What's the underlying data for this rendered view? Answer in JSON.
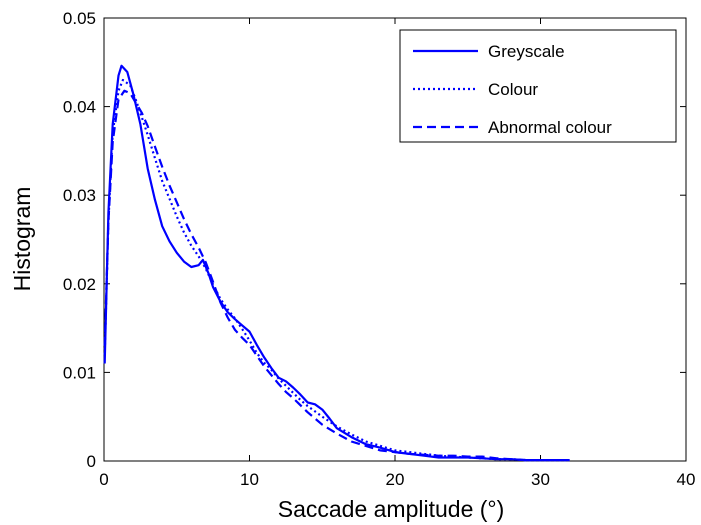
{
  "chart_data": {
    "type": "line",
    "title": "",
    "xlabel": "Saccade amplitude (°)",
    "ylabel": "Histogram",
    "xlim": [
      0,
      40
    ],
    "ylim": [
      0,
      0.05
    ],
    "xticks": [
      "0",
      "10",
      "20",
      "30",
      "40"
    ],
    "yticks": [
      "0",
      "0.01",
      "0.02",
      "0.03",
      "0.04",
      "0.05"
    ],
    "grid": false,
    "legend_position": "top-right",
    "line_color": "#0000ff",
    "series": [
      {
        "name": "Greyscale",
        "style": "solid",
        "x": [
          0.05,
          0.3,
          0.6,
          1.0,
          1.2,
          1.6,
          2.0,
          2.5,
          3.0,
          3.5,
          4.0,
          4.5,
          5.0,
          5.5,
          6.0,
          6.5,
          6.8,
          7.2,
          7.5,
          8.0,
          8.5,
          9.0,
          9.5,
          10.0,
          10.5,
          11.0,
          11.5,
          12.0,
          12.5,
          13.0,
          13.5,
          14.0,
          14.5,
          15.0,
          15.5,
          16.0,
          17.0,
          18.0,
          19.0,
          20.0,
          21.0,
          22.0,
          23.0,
          24.0,
          25.0,
          26.0,
          27.0,
          28.0,
          29.0,
          30.0,
          31.0,
          32.0
        ],
        "y": [
          0.011,
          0.028,
          0.038,
          0.0435,
          0.0446,
          0.0439,
          0.0415,
          0.038,
          0.033,
          0.0295,
          0.0265,
          0.0248,
          0.0235,
          0.0225,
          0.0219,
          0.0221,
          0.0227,
          0.0211,
          0.0196,
          0.018,
          0.0168,
          0.016,
          0.0153,
          0.0146,
          0.0131,
          0.0117,
          0.0105,
          0.0094,
          0.009,
          0.0083,
          0.0075,
          0.0066,
          0.0064,
          0.0058,
          0.0048,
          0.0037,
          0.0027,
          0.0019,
          0.0015,
          0.001,
          0.0008,
          0.0006,
          0.0004,
          0.0004,
          0.0004,
          0.0003,
          0.0002,
          0.0002,
          0.0001,
          0.0001,
          0.0001,
          0.0001
        ]
      },
      {
        "name": "Colour",
        "style": "dotted",
        "x": [
          0.05,
          0.3,
          0.6,
          1.0,
          1.3,
          1.8,
          2.2,
          2.6,
          3.0,
          3.5,
          4.0,
          4.5,
          5.0,
          5.5,
          6.0,
          6.5,
          7.0,
          7.5,
          8.0,
          8.5,
          9.0,
          9.5,
          10.0,
          10.5,
          11.0,
          11.5,
          12.0,
          12.5,
          13.0,
          13.5,
          14.0,
          14.5,
          15.0,
          16.0,
          17.0,
          18.0,
          19.0,
          20.0,
          21.0,
          22.0,
          23.0,
          24.0,
          25.0,
          26.0,
          27.0,
          28.0,
          29.0,
          30.0,
          31.0,
          32.0
        ],
        "y": [
          0.012,
          0.027,
          0.037,
          0.0418,
          0.043,
          0.0424,
          0.0407,
          0.0388,
          0.0368,
          0.0342,
          0.0316,
          0.0296,
          0.0276,
          0.0258,
          0.0243,
          0.0231,
          0.0217,
          0.0199,
          0.0183,
          0.0171,
          0.0161,
          0.0149,
          0.0136,
          0.0122,
          0.0111,
          0.0103,
          0.0093,
          0.0085,
          0.0077,
          0.0069,
          0.0062,
          0.0056,
          0.005,
          0.0039,
          0.003,
          0.0022,
          0.0017,
          0.0012,
          0.001,
          0.0008,
          0.0006,
          0.0005,
          0.0004,
          0.0003,
          0.0002,
          0.0002,
          0.0001,
          0.0001,
          0.0001,
          0.0001
        ]
      },
      {
        "name": "Abnormal colour",
        "style": "dashed",
        "x": [
          0.05,
          0.3,
          0.6,
          1.0,
          1.4,
          1.8,
          2.2,
          2.6,
          3.0,
          3.5,
          4.0,
          4.5,
          5.0,
          5.5,
          6.0,
          6.5,
          7.0,
          7.5,
          8.0,
          8.5,
          9.0,
          9.5,
          10.0,
          10.5,
          11.0,
          11.5,
          12.0,
          12.5,
          13.0,
          13.5,
          14.0,
          14.5,
          15.0,
          16.0,
          17.0,
          18.0,
          19.0,
          20.0,
          21.0,
          22.0,
          23.0,
          24.0,
          25.0,
          26.0,
          27.0,
          28.0,
          29.0
        ],
        "y": [
          0.013,
          0.027,
          0.036,
          0.0408,
          0.0418,
          0.0415,
          0.0404,
          0.0393,
          0.0378,
          0.0355,
          0.0332,
          0.0311,
          0.0292,
          0.0273,
          0.0256,
          0.0241,
          0.0224,
          0.0202,
          0.0179,
          0.0162,
          0.0148,
          0.0139,
          0.0131,
          0.0119,
          0.0107,
          0.0097,
          0.0087,
          0.0078,
          0.0071,
          0.0063,
          0.0055,
          0.0048,
          0.0041,
          0.0031,
          0.0022,
          0.0017,
          0.0012,
          0.001,
          0.0008,
          0.0007,
          0.0006,
          0.0006,
          0.0005,
          0.0005,
          0.0003,
          0.0002,
          0.0001
        ]
      }
    ]
  }
}
